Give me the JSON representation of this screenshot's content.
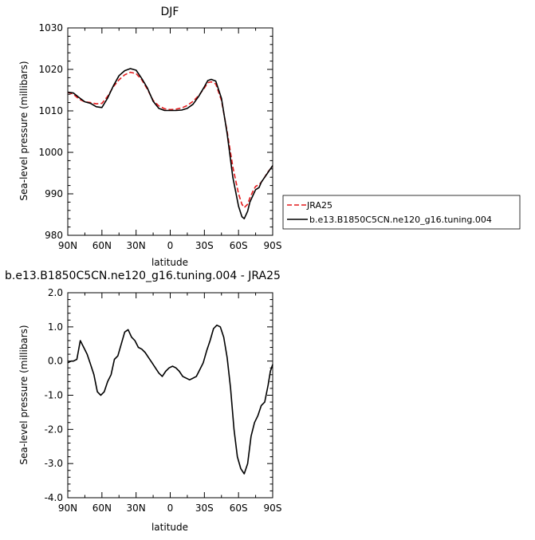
{
  "chart_data": [
    {
      "type": "line",
      "title": "DJF",
      "xlabel": "latitude",
      "ylabel": "Sea-level pressure (millibars)",
      "x_ticks": [
        90,
        60,
        30,
        0,
        -30,
        -60,
        -90
      ],
      "x_tick_labels": [
        "90N",
        "60N",
        "30N",
        "0",
        "30S",
        "60S",
        "90S"
      ],
      "xlim": [
        90,
        -90
      ],
      "ylim": [
        980,
        1030
      ],
      "y_ticks": [
        980,
        990,
        1000,
        1010,
        1020,
        1030
      ],
      "y_tick_labels": [
        "980",
        "990",
        "1000",
        "1010",
        "1020",
        "1030"
      ],
      "grid": false,
      "legend_position": "right",
      "series": [
        {
          "name": "JRA25",
          "color": "#e41a1c",
          "dash": "dashed",
          "x": [
            90,
            85,
            80,
            75,
            70,
            65,
            60,
            55,
            50,
            45,
            40,
            35,
            30,
            25,
            20,
            15,
            10,
            5,
            0,
            -5,
            -10,
            -15,
            -20,
            -25,
            -30,
            -33,
            -36,
            -40,
            -45,
            -50,
            -55,
            -60,
            -63,
            -65,
            -68,
            -70,
            -73,
            -75,
            -78,
            -80,
            -83,
            -85,
            -88,
            -90
          ],
          "y": [
            1014.5,
            1014.0,
            1012.8,
            1012.2,
            1012.0,
            1011.7,
            1011.8,
            1013.5,
            1015.8,
            1017.5,
            1018.7,
            1019.3,
            1019.0,
            1017.5,
            1015.2,
            1012.5,
            1011.2,
            1010.5,
            1010.3,
            1010.4,
            1010.7,
            1011.3,
            1012.3,
            1013.7,
            1015.5,
            1016.8,
            1017.0,
            1016.5,
            1012.5,
            1005.0,
            996.5,
            990.0,
            987.5,
            986.7,
            987.5,
            989.0,
            990.8,
            991.8,
            992.2,
            992.8,
            994.0,
            995.0,
            996.0,
            996.5
          ]
        },
        {
          "name": "b.e13.B1850C5CN.ne120_g16.tuning.004",
          "color": "#000000",
          "dash": "solid",
          "x": [
            90,
            85,
            80,
            75,
            70,
            65,
            60,
            55,
            50,
            45,
            40,
            35,
            30,
            25,
            20,
            15,
            10,
            5,
            0,
            -5,
            -10,
            -15,
            -20,
            -25,
            -30,
            -33,
            -36,
            -40,
            -45,
            -50,
            -55,
            -60,
            -63,
            -65,
            -68,
            -70,
            -73,
            -75,
            -78,
            -80,
            -83,
            -85,
            -88,
            -90
          ],
          "y": [
            1014.5,
            1014.3,
            1013.2,
            1012.2,
            1011.8,
            1011.0,
            1010.8,
            1013.1,
            1016.0,
            1018.5,
            1019.7,
            1020.2,
            1019.8,
            1017.8,
            1015.5,
            1012.3,
            1010.6,
            1010.1,
            1010.1,
            1010.1,
            1010.2,
            1010.6,
            1011.6,
            1013.5,
            1015.8,
            1017.3,
            1017.6,
            1017.2,
            1013.0,
            1004.5,
            994.0,
            987.0,
            984.5,
            984.0,
            985.8,
            988.0,
            989.8,
            991.0,
            991.5,
            992.8,
            994.0,
            994.8,
            996.0,
            996.8
          ]
        }
      ]
    },
    {
      "type": "line",
      "title": "b.e13.B1850C5CN.ne120_g16.tuning.004 - JRA25",
      "xlabel": "latitude",
      "ylabel": "Sea-level pressure (millibars)",
      "x_ticks": [
        90,
        60,
        30,
        0,
        -30,
        -60,
        -90
      ],
      "x_tick_labels": [
        "90N",
        "60N",
        "30N",
        "0",
        "30S",
        "60S",
        "90S"
      ],
      "xlim": [
        90,
        -90
      ],
      "ylim": [
        -4,
        2
      ],
      "y_ticks": [
        -4,
        -3,
        -2,
        -1,
        0,
        1,
        2
      ],
      "y_tick_labels": [
        "-4.0",
        "-3.0",
        "-2.0",
        "-1.0",
        "0.0",
        "1.0",
        "2.0"
      ],
      "grid": false,
      "series": [
        {
          "color": "#000000",
          "dash": "solid",
          "x": [
            90,
            87,
            85,
            82,
            79,
            76,
            73,
            70,
            67,
            64,
            61,
            58,
            55,
            52,
            49,
            46,
            43,
            40,
            37,
            34,
            31,
            28,
            25,
            22,
            19,
            16,
            13,
            10,
            7,
            4,
            1,
            -2,
            -5,
            -8,
            -11,
            -14,
            -17,
            -20,
            -23,
            -26,
            -29,
            -32,
            -35,
            -38,
            -41,
            -44,
            -47,
            -50,
            -53,
            -56,
            -59,
            -62,
            -65,
            -68,
            -71,
            -74,
            -77,
            -80,
            -83,
            -86,
            -88,
            -90
          ],
          "y": [
            -0.05,
            0.0,
            0.0,
            0.05,
            0.6,
            0.4,
            0.2,
            -0.1,
            -0.4,
            -0.9,
            -1.0,
            -0.9,
            -0.6,
            -0.4,
            0.05,
            0.15,
            0.5,
            0.85,
            0.92,
            0.7,
            0.6,
            0.4,
            0.35,
            0.25,
            0.1,
            -0.05,
            -0.2,
            -0.35,
            -0.45,
            -0.3,
            -0.2,
            -0.15,
            -0.2,
            -0.3,
            -0.45,
            -0.5,
            -0.55,
            -0.5,
            -0.45,
            -0.25,
            -0.05,
            0.3,
            0.6,
            0.95,
            1.05,
            1.0,
            0.7,
            0.1,
            -0.8,
            -2.0,
            -2.8,
            -3.15,
            -3.3,
            -3.0,
            -2.2,
            -1.8,
            -1.6,
            -1.3,
            -1.2,
            -0.7,
            -0.3,
            -0.1
          ]
        }
      ]
    }
  ]
}
